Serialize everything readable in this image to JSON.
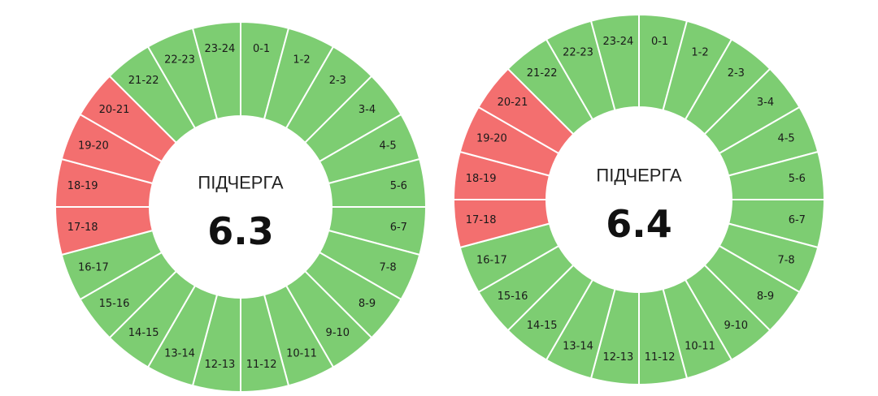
{
  "colors": {
    "on": "#7dcd72",
    "off": "#f36f6f",
    "separator": "#ffffff"
  },
  "chart_data": [
    {
      "type": "donut",
      "center_title": "ПІДЧЕРГА",
      "center_value": "6.3",
      "segments": [
        {
          "label": "0-1",
          "status": "on"
        },
        {
          "label": "1-2",
          "status": "on"
        },
        {
          "label": "2-3",
          "status": "on"
        },
        {
          "label": "3-4",
          "status": "on"
        },
        {
          "label": "4-5",
          "status": "on"
        },
        {
          "label": "5-6",
          "status": "on"
        },
        {
          "label": "6-7",
          "status": "on"
        },
        {
          "label": "7-8",
          "status": "on"
        },
        {
          "label": "8-9",
          "status": "on"
        },
        {
          "label": "9-10",
          "status": "on"
        },
        {
          "label": "10-11",
          "status": "on"
        },
        {
          "label": "11-12",
          "status": "on"
        },
        {
          "label": "12-13",
          "status": "on"
        },
        {
          "label": "13-14",
          "status": "on"
        },
        {
          "label": "14-15",
          "status": "on"
        },
        {
          "label": "15-16",
          "status": "on"
        },
        {
          "label": "16-17",
          "status": "on"
        },
        {
          "label": "17-18",
          "status": "off"
        },
        {
          "label": "18-19",
          "status": "off"
        },
        {
          "label": "19-20",
          "status": "off"
        },
        {
          "label": "20-21",
          "status": "off"
        },
        {
          "label": "21-22",
          "status": "on"
        },
        {
          "label": "22-23",
          "status": "on"
        },
        {
          "label": "23-24",
          "status": "on"
        }
      ]
    },
    {
      "type": "donut",
      "center_title": "ПІДЧЕРГА",
      "center_value": "6.4",
      "segments": [
        {
          "label": "0-1",
          "status": "on"
        },
        {
          "label": "1-2",
          "status": "on"
        },
        {
          "label": "2-3",
          "status": "on"
        },
        {
          "label": "3-4",
          "status": "on"
        },
        {
          "label": "4-5",
          "status": "on"
        },
        {
          "label": "5-6",
          "status": "on"
        },
        {
          "label": "6-7",
          "status": "on"
        },
        {
          "label": "7-8",
          "status": "on"
        },
        {
          "label": "8-9",
          "status": "on"
        },
        {
          "label": "9-10",
          "status": "on"
        },
        {
          "label": "10-11",
          "status": "on"
        },
        {
          "label": "11-12",
          "status": "on"
        },
        {
          "label": "12-13",
          "status": "on"
        },
        {
          "label": "13-14",
          "status": "on"
        },
        {
          "label": "14-15",
          "status": "on"
        },
        {
          "label": "15-16",
          "status": "on"
        },
        {
          "label": "16-17",
          "status": "on"
        },
        {
          "label": "17-18",
          "status": "off"
        },
        {
          "label": "18-19",
          "status": "off"
        },
        {
          "label": "19-20",
          "status": "off"
        },
        {
          "label": "20-21",
          "status": "off"
        },
        {
          "label": "21-22",
          "status": "on"
        },
        {
          "label": "22-23",
          "status": "on"
        },
        {
          "label": "23-24",
          "status": "on"
        }
      ]
    }
  ]
}
